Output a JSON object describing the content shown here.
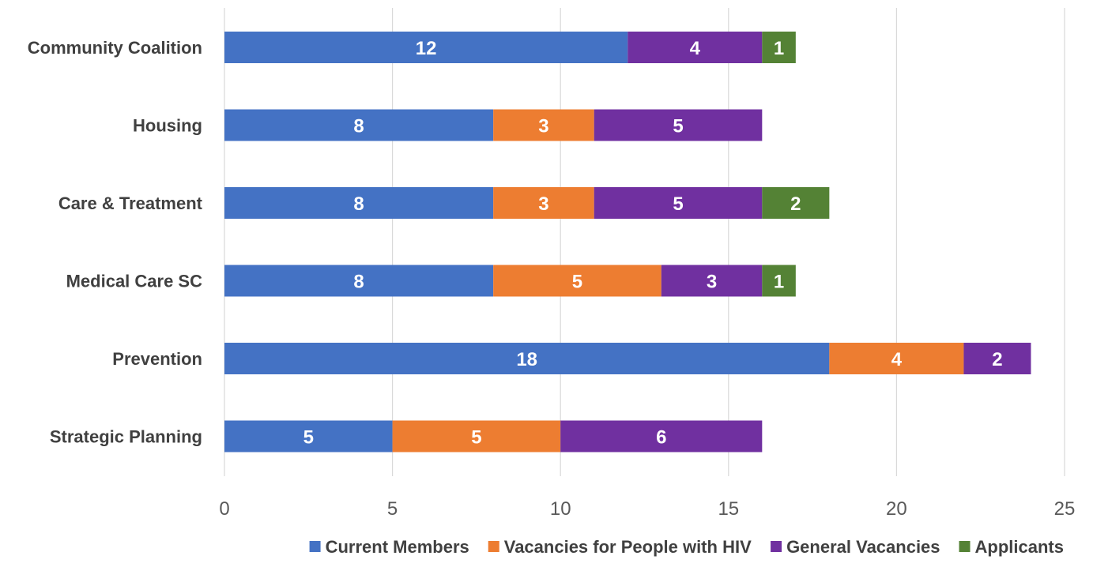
{
  "chart_data": {
    "type": "bar",
    "orientation": "horizontal",
    "stacked": true,
    "title": "",
    "xlabel": "",
    "ylabel": "",
    "categories": [
      "Community Coalition",
      "Housing",
      "Care & Treatment",
      "Medical Care SC",
      "Prevention",
      "Strategic Planning"
    ],
    "series": [
      {
        "name": "Current Members",
        "color": "#4472C4",
        "values": [
          12,
          8,
          8,
          8,
          18,
          5
        ]
      },
      {
        "name": "Vacancies for People with HIV",
        "color": "#ED7D31",
        "values": [
          0,
          3,
          3,
          5,
          4,
          5
        ]
      },
      {
        "name": "General Vacancies",
        "color": "#7030A0",
        "values": [
          4,
          5,
          5,
          3,
          2,
          6
        ]
      },
      {
        "name": "Applicants",
        "color": "#548235",
        "values": [
          1,
          0,
          2,
          1,
          0,
          0
        ]
      }
    ],
    "xlim": [
      0,
      25
    ],
    "x_ticks": [
      0,
      5,
      10,
      15,
      20,
      25
    ],
    "grid": true,
    "data_labels": true,
    "legend_position": "bottom"
  }
}
